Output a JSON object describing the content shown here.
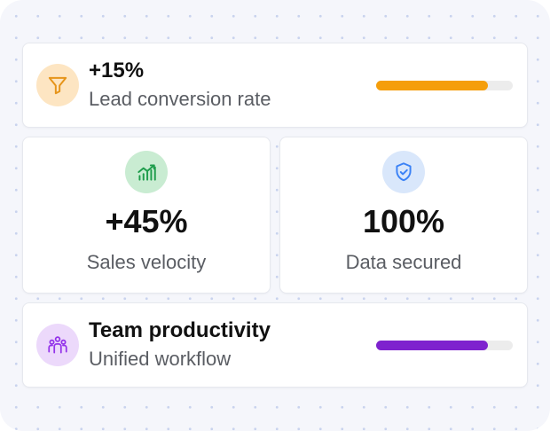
{
  "lead_conversion": {
    "value": "+15%",
    "label": "Lead conversion rate",
    "icon": "funnel-icon",
    "progress": 0.82,
    "bar_color": "#f59e0b",
    "icon_bg": "#fde5c2",
    "icon_color": "#e69419"
  },
  "sales_velocity": {
    "value": "+45%",
    "label": "Sales velocity",
    "icon": "growth-chart-icon",
    "icon_bg": "#c9ecd2",
    "icon_color": "#1f9d4c"
  },
  "data_secured": {
    "value": "100%",
    "label": "Data secured",
    "icon": "shield-check-icon",
    "icon_bg": "#d9e7fb",
    "icon_color": "#3b82f6"
  },
  "team_productivity": {
    "title": "Team productivity",
    "label": "Unified workflow",
    "icon": "team-icon",
    "progress": 0.82,
    "bar_color": "#7e22ce",
    "icon_bg": "#ecd9fb",
    "icon_color": "#9333ea"
  }
}
